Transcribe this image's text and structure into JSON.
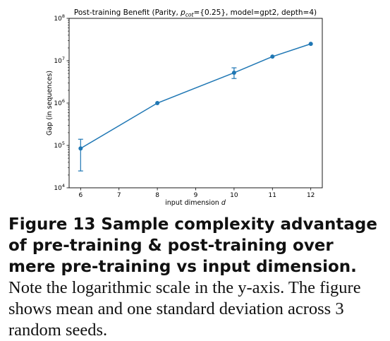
{
  "chart_data": {
    "type": "line",
    "title_main": "Post-training Benefit (Parity, ",
    "title_p": "p",
    "title_sub": "cot",
    "title_rest": "={0.25}, model=gpt2, depth=4)",
    "xlabel_main": "input dimension ",
    "xlabel_var": "d",
    "ylabel": "Gap (in sequences)",
    "x_ticks": [
      6,
      7,
      8,
      9,
      10,
      11,
      12
    ],
    "x_tick_labels": [
      "6",
      "7",
      "8",
      "9",
      "10",
      "11",
      "12"
    ],
    "y_ticks": [
      4,
      5,
      6,
      7,
      8
    ],
    "y_tick_base": "10",
    "y_tick_exps": [
      "4",
      "5",
      "6",
      "7",
      "8"
    ],
    "xlim": [
      5.7,
      12.3
    ],
    "ylim": [
      10000,
      100000000
    ],
    "yscale": "log",
    "grid": false,
    "color": "#1f77b4",
    "series": [
      {
        "x": [
          6,
          8,
          10,
          11,
          12
        ],
        "y": [
          85000,
          1000000,
          5200000,
          12500000,
          25000000
        ],
        "err_low": [
          25000,
          null,
          3800000,
          null,
          null
        ],
        "err_high": [
          140000,
          null,
          6800000,
          null,
          null
        ]
      }
    ]
  },
  "caption": {
    "label": "Figure 13",
    "heading": "Sample complexity advantage of pre-training & post-training over mere pre-training vs input dimension.",
    "text": "Note the logarithmic scale in the y-axis. The figure shows mean and one standard deviation across 3 random seeds."
  }
}
